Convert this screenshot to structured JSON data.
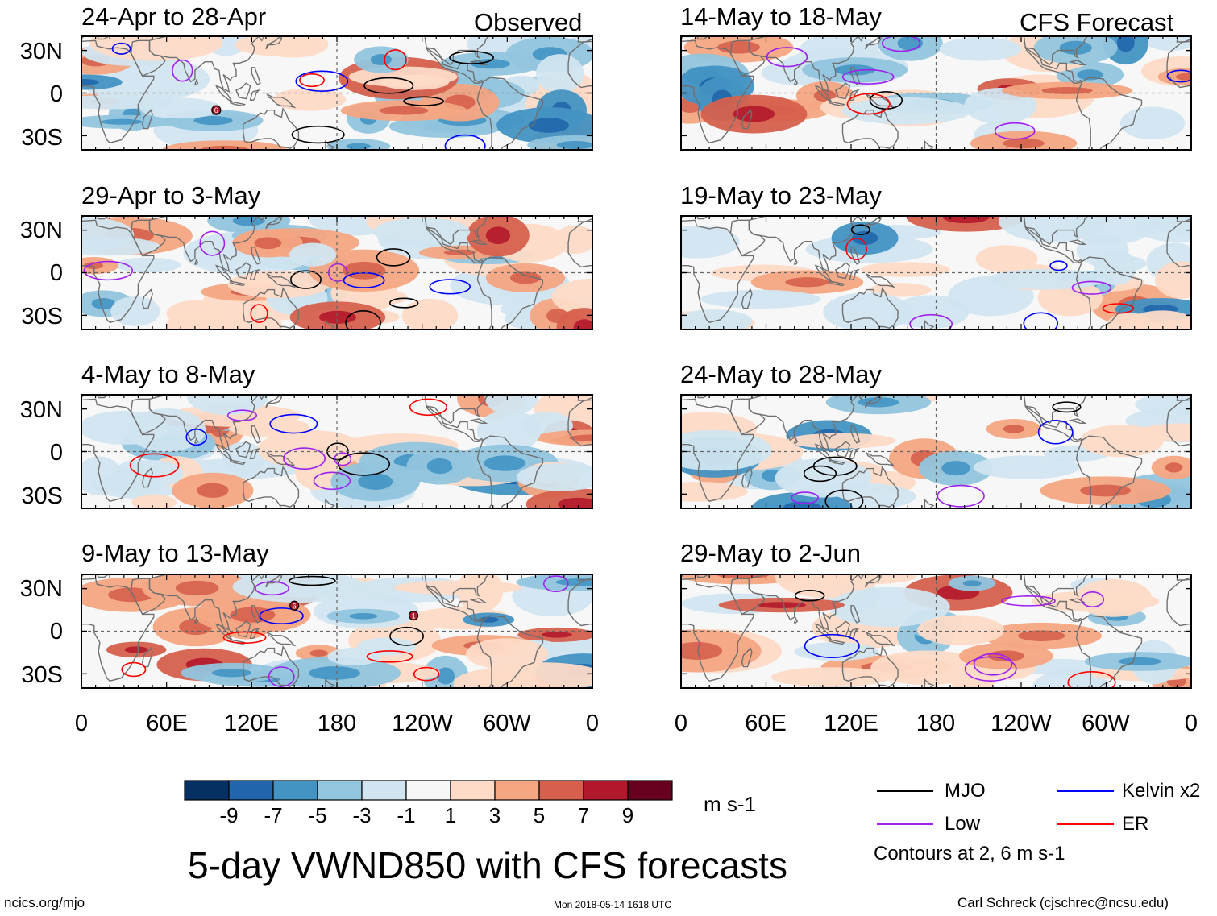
{
  "figure": {
    "title": "5-day VWND850 with CFS forecasts",
    "variable": "VWND850",
    "units": "m s-1"
  },
  "columns": {
    "observed_label": "Observed",
    "forecast_label": "CFS Forecast"
  },
  "panels": [
    {
      "id": "obs-1",
      "column": "observed",
      "title": "24-Apr to 28-Apr",
      "storms": [
        {
          "label": "6",
          "lon": 95,
          "lat": -12
        }
      ]
    },
    {
      "id": "obs-2",
      "column": "observed",
      "title": "29-Apr to 3-May",
      "storms": []
    },
    {
      "id": "obs-3",
      "column": "observed",
      "title": "4-May to 8-May",
      "storms": []
    },
    {
      "id": "obs-4",
      "column": "observed",
      "title": "9-May to 13-May",
      "storms": [
        {
          "label": "6",
          "lon": 150,
          "lat": 18
        },
        {
          "label": "1",
          "lon": 234,
          "lat": 11
        }
      ]
    },
    {
      "id": "fcst-1",
      "column": "forecast",
      "title": "14-May to 18-May",
      "storms": []
    },
    {
      "id": "fcst-2",
      "column": "forecast",
      "title": "19-May to 23-May",
      "storms": []
    },
    {
      "id": "fcst-3",
      "column": "forecast",
      "title": "24-May to 28-May",
      "storms": []
    },
    {
      "id": "fcst-4",
      "column": "forecast",
      "title": "29-May to 2-Jun",
      "storms": []
    }
  ],
  "axes": {
    "lat_ticks": [
      "30N",
      "0",
      "30S"
    ],
    "lat_values": [
      30,
      0,
      -30
    ],
    "lat_range": [
      -40,
      40
    ],
    "lon_ticks": [
      "0",
      "60E",
      "120E",
      "180",
      "120W",
      "60W",
      "0"
    ],
    "lon_values": [
      0,
      60,
      120,
      180,
      240,
      300,
      360
    ],
    "lon_range": [
      0,
      360
    ]
  },
  "colorbar": {
    "labels": [
      "-9",
      "-7",
      "-5",
      "-3",
      "-1",
      "1",
      "3",
      "5",
      "7",
      "9"
    ],
    "colors": [
      "#053061",
      "#2166ac",
      "#4393c3",
      "#92c5de",
      "#d1e5f0",
      "#f7f7f7",
      "#fddbc7",
      "#f4a582",
      "#d6604d",
      "#b2182b",
      "#67001f"
    ]
  },
  "legend": {
    "items": [
      {
        "label": "MJO",
        "color": "#000000"
      },
      {
        "label": "Kelvin x2",
        "color": "#0000ff"
      },
      {
        "label": "Low",
        "color": "#a020f0"
      },
      {
        "label": "ER",
        "color": "#ff0000"
      }
    ],
    "note": "Contours at 2, 6 m s-1"
  },
  "footer": {
    "left": "ncics.org/mjo",
    "center": "Mon 2018-05-14 1618 UTC",
    "right": "Carl Schreck (cjschrec@ncsu.edu)"
  }
}
